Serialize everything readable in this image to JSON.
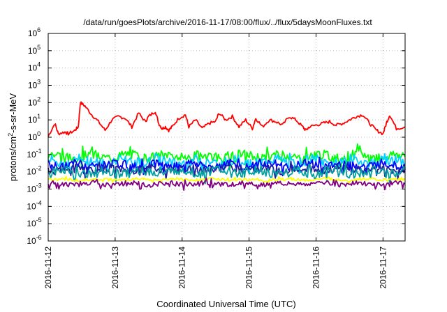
{
  "chart_data": {
    "type": "line",
    "title": "/data/run/goesPlots/archive/2016-11-17/08:00/flux/../flux/5daysMoonFluxes.txt",
    "xlabel": "Coordinated Universal Time (UTC)",
    "ylabel_parts": [
      "protons/cm",
      "2",
      "-s-sr-MeV"
    ],
    "yscale": "log",
    "ylim_exp": [
      -6,
      6
    ],
    "ytick_exponents": [
      -6,
      -5,
      -4,
      -3,
      -2,
      -1,
      0,
      1,
      2,
      3,
      4,
      5,
      6
    ],
    "ytick_base": "10",
    "xlim_days": [
      0,
      5.33
    ],
    "xticks": [
      {
        "label": "2016-11-12",
        "day": 0
      },
      {
        "label": "2016-11-13",
        "day": 1
      },
      {
        "label": "2016-11-14",
        "day": 2
      },
      {
        "label": "2016-11-15",
        "day": 3
      },
      {
        "label": "2016-11-16",
        "day": 4
      },
      {
        "label": "2016-11-17",
        "day": 5
      }
    ],
    "grid": true,
    "series": [
      {
        "color": "#ff0000",
        "x": [
          0,
          0.1,
          0.15,
          0.25,
          0.3,
          0.4,
          0.45,
          0.48,
          0.55,
          0.65,
          0.75,
          0.85,
          0.95,
          1.05,
          1.15,
          1.25,
          1.35,
          1.45,
          1.5,
          1.6,
          1.65,
          1.7,
          1.75,
          1.8,
          1.85,
          1.95,
          2.05,
          2.1,
          2.2,
          2.3,
          2.4,
          2.5,
          2.55,
          2.65,
          2.75,
          2.85,
          2.95,
          3.05,
          3.1,
          3.2,
          3.3,
          3.4,
          3.5,
          3.6,
          3.7,
          3.8,
          3.85,
          3.9,
          4.0,
          4.1,
          4.2,
          4.3,
          4.4,
          4.5,
          4.6,
          4.7,
          4.8,
          4.9,
          5.0,
          5.05,
          5.1,
          5.2,
          5.33
        ],
        "values_exp": [
          0.05,
          0.8,
          0.2,
          0.3,
          0.2,
          0.4,
          0.6,
          2.0,
          1.8,
          1.3,
          0.9,
          0.4,
          1.0,
          1.2,
          1.1,
          0.6,
          1.4,
          0.9,
          1.2,
          1.5,
          0.8,
          0.5,
          0.6,
          0.4,
          0.6,
          1.1,
          1.3,
          0.6,
          1.0,
          0.5,
          0.8,
          0.9,
          1.4,
          1.0,
          1.2,
          0.6,
          1.0,
          0.5,
          1.1,
          0.6,
          1.0,
          0.9,
          0.7,
          1.2,
          1.0,
          0.6,
          0.4,
          0.6,
          0.7,
          0.8,
          0.9,
          0.7,
          0.8,
          1.0,
          1.2,
          1.3,
          0.8,
          0.4,
          0.2,
          0.8,
          1.3,
          0.5,
          0.6
        ]
      },
      {
        "color": "#00ff00",
        "mean_exp": -1.1,
        "amp": 0.28
      },
      {
        "color": "#00d0ff",
        "mean_exp": -1.4,
        "amp": 0.3
      },
      {
        "color": "#0000ff",
        "mean_exp": -1.6,
        "amp": 0.25
      },
      {
        "color": "#2020a0",
        "mean_exp": -1.85,
        "amp": 0.22
      },
      {
        "color": "#00a0a0",
        "mean_exp": -2.0,
        "amp": 0.28
      },
      {
        "color": "#ffff00",
        "mean_exp": -2.45,
        "amp": 0.08
      },
      {
        "color": "#800080",
        "mean_exp": -2.7,
        "amp": 0.14
      }
    ]
  }
}
